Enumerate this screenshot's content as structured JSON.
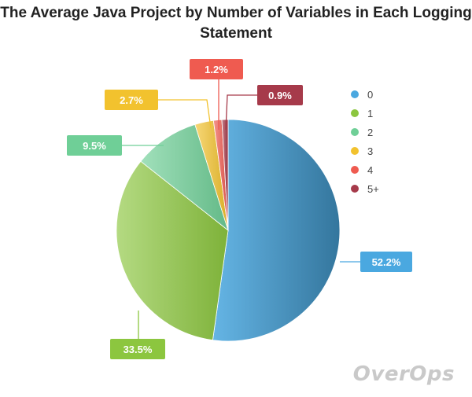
{
  "chart_data": {
    "type": "pie",
    "title": "The Average Java Project by Number of Variables in Each Logging Statement",
    "categories": [
      "0",
      "1",
      "2",
      "3",
      "4",
      "5+"
    ],
    "values": [
      52.2,
      33.5,
      9.5,
      2.7,
      1.2,
      0.9
    ],
    "value_labels": [
      "52.2%",
      "33.5%",
      "9.5%",
      "2.7%",
      "1.2%",
      "0.9%"
    ],
    "colors": [
      "#4aa8e0",
      "#8cc63f",
      "#6fcf97",
      "#f2c22e",
      "#ef5b50",
      "#a63a4a"
    ],
    "legend_position": "right"
  },
  "brand": "OverOps"
}
